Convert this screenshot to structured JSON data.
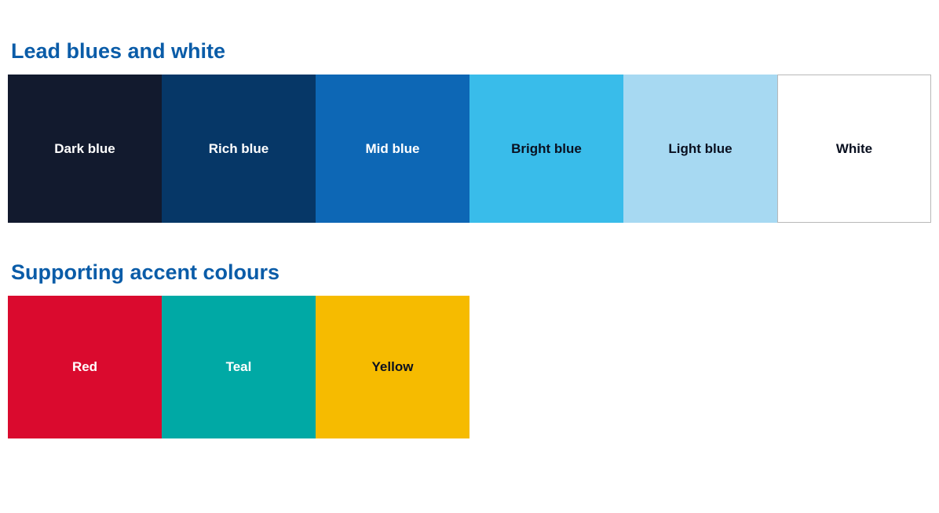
{
  "sections": {
    "lead": {
      "title": "Lead blues and white",
      "swatches": [
        {
          "label": "Dark blue",
          "bg": "#121a2e",
          "text": "#ffffff",
          "bordered": false
        },
        {
          "label": "Rich blue",
          "bg": "#063767",
          "text": "#ffffff",
          "bordered": false
        },
        {
          "label": "Mid blue",
          "bg": "#0d67b5",
          "text": "#ffffff",
          "bordered": false
        },
        {
          "label": "Bright blue",
          "bg": "#39bcea",
          "text": "#0a1020",
          "bordered": false
        },
        {
          "label": "Light blue",
          "bg": "#a7d9f2",
          "text": "#0a1020",
          "bordered": false
        },
        {
          "label": "White",
          "bg": "#ffffff",
          "text": "#0a1020",
          "bordered": true
        }
      ]
    },
    "accent": {
      "title": "Supporting accent colours",
      "swatches": [
        {
          "label": "Red",
          "bg": "#da0a2e",
          "text": "#ffffff",
          "bordered": false
        },
        {
          "label": "Teal",
          "bg": "#00a9a5",
          "text": "#ffffff",
          "bordered": false
        },
        {
          "label": "Yellow",
          "bg": "#f6bb00",
          "text": "#0a1020",
          "bordered": false
        }
      ]
    }
  },
  "style": {
    "title_color": "#0a5ca8",
    "title_fontsize": 27,
    "label_fontsize": 17,
    "swatch_width": 196,
    "lead_swatch_height": 189,
    "accent_swatch_height": 182,
    "background": "#ffffff"
  }
}
